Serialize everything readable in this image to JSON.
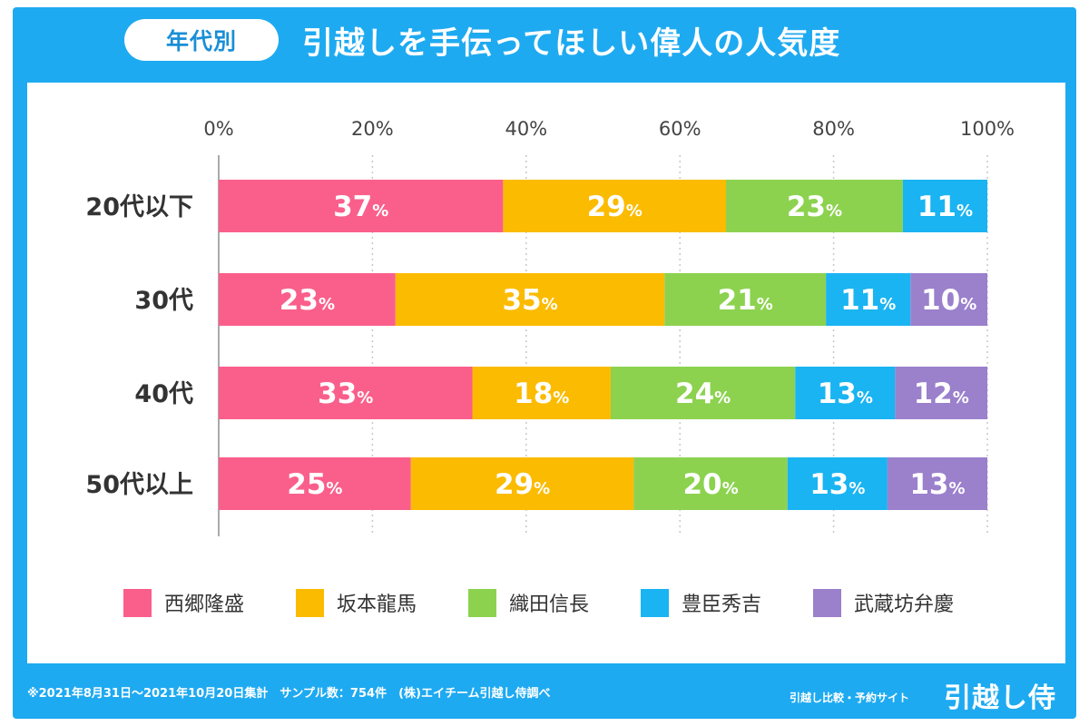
{
  "header": {
    "badge": "年代別",
    "title": "引越しを手伝ってほしい偉人の人気度"
  },
  "chart_data": {
    "type": "bar",
    "orientation": "horizontal",
    "stacked": true,
    "percent_suffix": "%",
    "xlim": [
      0,
      100
    ],
    "x_ticks": [
      "0%",
      "20%",
      "40%",
      "60%",
      "80%",
      "100%"
    ],
    "grid": true,
    "legend_position": "bottom",
    "categories": [
      "20代以下",
      "30代",
      "40代",
      "50代以上"
    ],
    "series": [
      {
        "name": "西郷隆盛",
        "color": "#fa5f8b",
        "values": [
          37,
          23,
          33,
          25
        ]
      },
      {
        "name": "坂本龍馬",
        "color": "#fbbb00",
        "values": [
          29,
          35,
          18,
          29
        ]
      },
      {
        "name": "織田信長",
        "color": "#8cd24f",
        "values": [
          23,
          21,
          24,
          20
        ]
      },
      {
        "name": "豊臣秀吉",
        "color": "#1ab4f2",
        "values": [
          11,
          11,
          13,
          13
        ]
      },
      {
        "name": "武蔵坊弁慶",
        "color": "#9b80cc",
        "values": [
          0,
          10,
          12,
          13
        ]
      }
    ]
  },
  "footer": {
    "note": "※2021年8月31日〜2021年10月20日集計　サンプル数：754件　(株)エイチーム引越し侍調べ",
    "brand_sub": "引越し比較・予約サイト",
    "brand": "引越し侍"
  }
}
